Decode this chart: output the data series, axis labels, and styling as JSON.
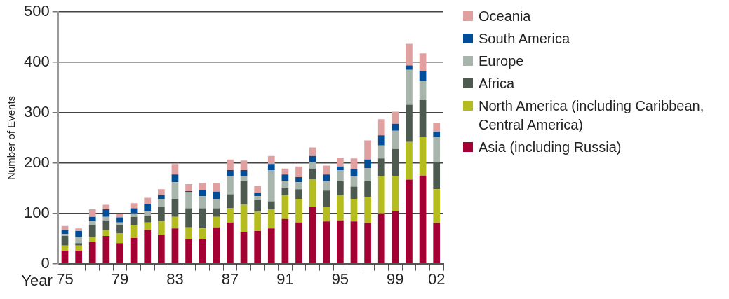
{
  "chart_data": {
    "type": "bar",
    "stacked": true,
    "xlabel": "Year",
    "ylabel": "Number of Events",
    "categories": [
      "75",
      null,
      null,
      null,
      "79",
      null,
      null,
      null,
      "83",
      null,
      null,
      null,
      "87",
      null,
      null,
      null,
      "91",
      null,
      null,
      null,
      "95",
      null,
      null,
      null,
      "99",
      null,
      null,
      "02"
    ],
    "series": [
      {
        "name": "Asia (including Russia)",
        "color": "#a50034",
        "values": [
          26,
          26,
          43,
          55,
          41,
          51,
          67,
          58,
          70,
          48,
          48,
          72,
          82,
          63,
          65,
          70,
          89,
          82,
          112,
          84,
          86,
          84,
          81,
          100,
          105,
          167,
          175,
          81
        ]
      },
      {
        "name": "North America (including Caribbean, Central America)",
        "color": "#b5bd1e",
        "values": [
          10,
          10,
          10,
          12,
          19,
          26,
          15,
          26,
          23,
          24,
          22,
          21,
          28,
          54,
          38,
          38,
          47,
          47,
          55,
          28,
          50,
          45,
          52,
          74,
          69,
          75,
          77,
          67
        ]
      },
      {
        "name": "Africa",
        "color": "#4d5a50",
        "values": [
          19,
          5,
          24,
          19,
          17,
          16,
          13,
          28,
          36,
          38,
          40,
          17,
          28,
          48,
          24,
          16,
          14,
          19,
          22,
          33,
          28,
          24,
          31,
          35,
          54,
          74,
          73,
          54
        ]
      },
      {
        "name": "Europe",
        "color": "#a8b5ac",
        "values": [
          4,
          12,
          7,
          7,
          5,
          7,
          10,
          17,
          33,
          32,
          24,
          19,
          36,
          9,
          7,
          62,
          15,
          14,
          13,
          19,
          22,
          21,
          26,
          26,
          36,
          69,
          38,
          50
        ]
      },
      {
        "name": "South America",
        "color": "#004e9a",
        "values": [
          8,
          12,
          9,
          15,
          10,
          10,
          14,
          7,
          15,
          2,
          12,
          14,
          12,
          12,
          7,
          12,
          12,
          10,
          12,
          13,
          7,
          14,
          17,
          20,
          14,
          9,
          20,
          10
        ]
      },
      {
        "name": "Oceania",
        "color": "#e0a0a0",
        "values": [
          8,
          5,
          15,
          9,
          7,
          10,
          12,
          12,
          21,
          14,
          14,
          17,
          21,
          19,
          14,
          16,
          12,
          21,
          17,
          18,
          18,
          21,
          38,
          32,
          24,
          43,
          35,
          18
        ]
      }
    ],
    "ylim": [
      0,
      500
    ],
    "yticks": [
      0,
      100,
      200,
      300,
      400,
      500
    ],
    "grid": "y",
    "legend": "right"
  }
}
